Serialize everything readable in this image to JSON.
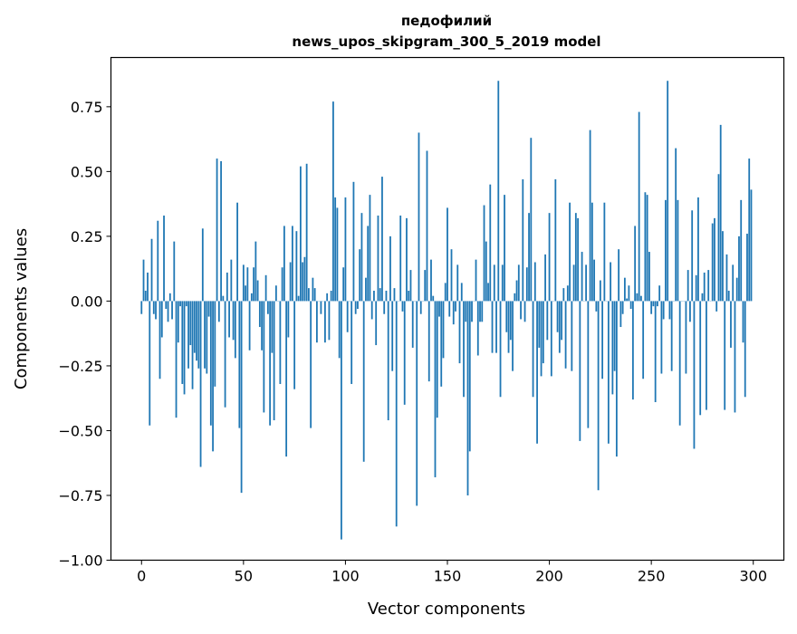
{
  "chart_data": {
    "type": "bar",
    "title": "педофилий",
    "subtitle": "news_upos_skipgram_300_5_2019 model",
    "xlabel": "Vector components",
    "ylabel": "Components values",
    "xlim": [
      -15,
      315
    ],
    "ylim": [
      -1.0,
      0.94
    ],
    "xticks": [
      "0",
      "50",
      "100",
      "150",
      "200",
      "250",
      "300"
    ],
    "xtick_values": [
      0,
      50,
      100,
      150,
      200,
      250,
      300
    ],
    "yticks": [
      "−1.00",
      "−0.75",
      "−0.50",
      "−0.25",
      "0.00",
      "0.25",
      "0.50",
      "0.75"
    ],
    "ytick_values": [
      -1.0,
      -0.75,
      -0.5,
      -0.25,
      0,
      0.25,
      0.5,
      0.75
    ],
    "grid": false,
    "bar_color": "#1f77b4",
    "values": [
      -0.05,
      0.16,
      0.04,
      0.11,
      -0.48,
      0.24,
      -0.05,
      -0.07,
      0.31,
      -0.3,
      -0.14,
      0.33,
      -0.03,
      -0.08,
      0.03,
      -0.07,
      0.23,
      -0.45,
      -0.16,
      -0.02,
      -0.32,
      -0.36,
      -0.02,
      -0.26,
      -0.17,
      -0.34,
      -0.2,
      -0.23,
      -0.26,
      -0.64,
      0.28,
      -0.26,
      -0.28,
      -0.06,
      -0.48,
      -0.58,
      -0.33,
      0.55,
      -0.08,
      0.54,
      0.02,
      -0.41,
      0.11,
      -0.14,
      0.16,
      -0.15,
      -0.22,
      0.38,
      -0.49,
      -0.74,
      0.14,
      0.06,
      0.13,
      -0.19,
      0.03,
      0.13,
      0.23,
      0.08,
      -0.1,
      -0.19,
      -0.43,
      0.1,
      -0.05,
      -0.48,
      -0.2,
      -0.46,
      0.06,
      0.0,
      -0.32,
      0.13,
      0.29,
      -0.6,
      -0.14,
      0.15,
      0.29,
      -0.34,
      0.27,
      0.02,
      0.52,
      0.15,
      0.17,
      0.53,
      0.05,
      -0.49,
      0.09,
      0.05,
      -0.16,
      0.0,
      -0.05,
      0.0,
      -0.16,
      0.03,
      -0.15,
      0.04,
      0.77,
      0.4,
      0.36,
      -0.22,
      -0.92,
      0.13,
      0.4,
      -0.12,
      0.0,
      -0.32,
      0.46,
      -0.05,
      -0.03,
      0.2,
      0.34,
      -0.62,
      0.09,
      0.29,
      0.41,
      -0.07,
      0.04,
      -0.17,
      0.33,
      0.05,
      0.48,
      -0.05,
      0.04,
      -0.46,
      0.25,
      -0.27,
      0.05,
      -0.87,
      0.0,
      0.33,
      -0.04,
      -0.4,
      0.32,
      0.04,
      0.12,
      -0.18,
      0.0,
      -0.79,
      0.65,
      -0.05,
      0.0,
      0.12,
      0.58,
      -0.31,
      0.16,
      0.02,
      -0.68,
      -0.45,
      -0.06,
      -0.33,
      -0.22,
      0.07,
      0.36,
      -0.06,
      0.2,
      -0.09,
      -0.04,
      0.14,
      -0.24,
      0.07,
      -0.37,
      -0.08,
      -0.75,
      -0.58,
      -0.08,
      0.0,
      0.16,
      -0.21,
      -0.08,
      -0.08,
      0.37,
      0.23,
      0.07,
      0.45,
      -0.2,
      0.14,
      -0.2,
      0.85,
      -0.37,
      0.14,
      0.41,
      -0.12,
      -0.2,
      -0.15,
      -0.27,
      0.03,
      0.08,
      0.14,
      -0.07,
      0.47,
      -0.08,
      0.13,
      0.34,
      0.63,
      -0.37,
      0.15,
      -0.55,
      -0.18,
      -0.29,
      -0.24,
      0.18,
      -0.15,
      0.34,
      -0.29,
      0.0,
      0.47,
      -0.12,
      -0.2,
      -0.15,
      0.05,
      -0.26,
      0.06,
      0.38,
      -0.27,
      0.14,
      0.34,
      0.32,
      -0.54,
      0.19,
      0.0,
      0.14,
      -0.49,
      0.66,
      0.38,
      0.16,
      -0.04,
      -0.73,
      0.08,
      -0.3,
      0.38,
      0.0,
      -0.55,
      0.15,
      -0.36,
      -0.27,
      -0.6,
      0.2,
      -0.1,
      -0.05,
      0.09,
      0.01,
      0.06,
      -0.03,
      -0.38,
      0.29,
      0.03,
      0.73,
      0.02,
      -0.3,
      0.42,
      0.41,
      0.19,
      -0.05,
      -0.02,
      -0.39,
      -0.02,
      0.06,
      -0.28,
      -0.07,
      0.39,
      0.85,
      -0.07,
      -0.27,
      0.0,
      0.59,
      0.39,
      -0.48,
      0.0,
      0.0,
      -0.28,
      0.12,
      -0.08,
      0.35,
      -0.57,
      0.1,
      0.4,
      -0.44,
      0.03,
      0.11,
      -0.42,
      0.12,
      0.0,
      0.3,
      0.32,
      -0.04,
      0.49,
      0.68,
      0.27,
      -0.42,
      0.18,
      0.04,
      -0.18,
      0.14,
      -0.43,
      0.09,
      0.25,
      0.39,
      -0.16,
      -0.37,
      0.26,
      0.55,
      0.43
    ]
  }
}
